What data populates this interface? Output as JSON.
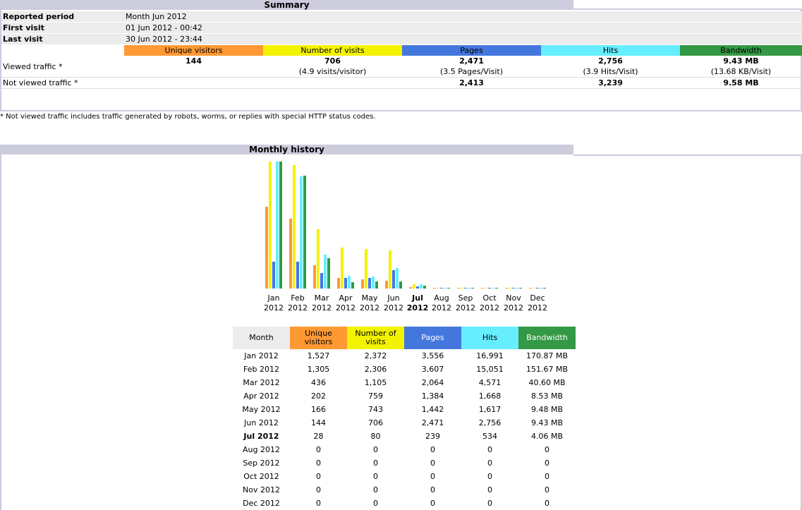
{
  "summary": {
    "title": "Summary",
    "info": [
      {
        "label": "Reported period",
        "value": "Month Jun 2012"
      },
      {
        "label": "First visit",
        "value": "01 Jun 2012 - 00:42"
      },
      {
        "label": "Last visit",
        "value": "30 Jun 2012 - 23:44"
      }
    ],
    "columns": [
      "Unique visitors",
      "Number of visits",
      "Pages",
      "Hits",
      "Bandwidth"
    ],
    "viewed": {
      "label": "Viewed traffic *",
      "unique": "144",
      "visits": "706",
      "visits_sub": "(4.9 visits/visitor)",
      "pages": "2,471",
      "pages_sub": "(3.5 Pages/Visit)",
      "hits": "2,756",
      "hits_sub": "(3.9 Hits/Visit)",
      "bandwidth": "9.43 MB",
      "bandwidth_sub": "(13.68 KB/Visit)"
    },
    "not_viewed": {
      "label": "Not viewed traffic *",
      "pages": "2,413",
      "hits": "3,239",
      "bandwidth": "9.58 MB"
    },
    "note": "* Not viewed traffic includes traffic generated by robots, worms, or replies with special HTTP status codes."
  },
  "monthly": {
    "title": "Monthly history",
    "columns": {
      "month": "Month",
      "unique": "Unique visitors",
      "visits": "Number of visits",
      "pages": "Pages",
      "hits": "Hits",
      "bandwidth": "Bandwidth"
    },
    "current_month": "Jul 2012",
    "rows": [
      {
        "month": "Jan 2012",
        "unique": "1,527",
        "visits": "2,372",
        "pages": "3,556",
        "hits": "16,991",
        "bandwidth": "170.87 MB"
      },
      {
        "month": "Feb 2012",
        "unique": "1,305",
        "visits": "2,306",
        "pages": "3,607",
        "hits": "15,051",
        "bandwidth": "151.67 MB"
      },
      {
        "month": "Mar 2012",
        "unique": "436",
        "visits": "1,105",
        "pages": "2,064",
        "hits": "4,571",
        "bandwidth": "40.60 MB"
      },
      {
        "month": "Apr 2012",
        "unique": "202",
        "visits": "759",
        "pages": "1,384",
        "hits": "1,668",
        "bandwidth": "8.53 MB"
      },
      {
        "month": "May 2012",
        "unique": "166",
        "visits": "743",
        "pages": "1,442",
        "hits": "1,617",
        "bandwidth": "9.48 MB"
      },
      {
        "month": "Jun 2012",
        "unique": "144",
        "visits": "706",
        "pages": "2,471",
        "hits": "2,756",
        "bandwidth": "9.43 MB"
      },
      {
        "month": "Jul 2012",
        "unique": "28",
        "visits": "80",
        "pages": "239",
        "hits": "534",
        "bandwidth": "4.06 MB"
      },
      {
        "month": "Aug 2012",
        "unique": "0",
        "visits": "0",
        "pages": "0",
        "hits": "0",
        "bandwidth": "0"
      },
      {
        "month": "Sep 2012",
        "unique": "0",
        "visits": "0",
        "pages": "0",
        "hits": "0",
        "bandwidth": "0"
      },
      {
        "month": "Oct 2012",
        "unique": "0",
        "visits": "0",
        "pages": "0",
        "hits": "0",
        "bandwidth": "0"
      },
      {
        "month": "Nov 2012",
        "unique": "0",
        "visits": "0",
        "pages": "0",
        "hits": "0",
        "bandwidth": "0"
      },
      {
        "month": "Dec 2012",
        "unique": "0",
        "visits": "0",
        "pages": "0",
        "hits": "0",
        "bandwidth": "0"
      }
    ]
  },
  "colors": {
    "unique": "#ff9933",
    "visits": "#f3f300",
    "pages": "#4477dd",
    "hits": "#66eeff",
    "bandwidth": "#339944"
  },
  "chart_data": {
    "type": "bar",
    "categories": [
      [
        "Jan",
        "2012"
      ],
      [
        "Feb",
        "2012"
      ],
      [
        "Mar",
        "2012"
      ],
      [
        "Apr",
        "2012"
      ],
      [
        "May",
        "2012"
      ],
      [
        "Jun",
        "2012"
      ],
      [
        "Jul",
        "2012"
      ],
      [
        "Aug",
        "2012"
      ],
      [
        "Sep",
        "2012"
      ],
      [
        "Oct",
        "2012"
      ],
      [
        "Nov",
        "2012"
      ],
      [
        "Dec",
        "2012"
      ]
    ],
    "highlight_category": 6,
    "groups": [
      {
        "key": "visitors",
        "series": [
          {
            "key": "unique",
            "values": [
              1527,
              1305,
              436,
              202,
              166,
              144,
              28,
              0,
              0,
              0,
              0,
              0
            ]
          },
          {
            "key": "visits",
            "values": [
              2372,
              2306,
              1105,
              759,
              743,
              706,
              80,
              0,
              0,
              0,
              0,
              0
            ]
          }
        ]
      },
      {
        "key": "pages_hits",
        "series": [
          {
            "key": "pages",
            "values": [
              3556,
              3607,
              2064,
              1384,
              1442,
              2471,
              239,
              0,
              0,
              0,
              0,
              0
            ]
          },
          {
            "key": "hits",
            "values": [
              16991,
              15051,
              4571,
              1668,
              1617,
              2756,
              534,
              0,
              0,
              0,
              0,
              0
            ]
          }
        ]
      },
      {
        "key": "bandwidth",
        "series": [
          {
            "key": "bandwidth",
            "values": [
              170.87,
              151.67,
              40.6,
              8.53,
              9.48,
              9.43,
              4.06,
              0,
              0,
              0,
              0,
              0
            ]
          }
        ]
      }
    ],
    "title": "",
    "xlabel": "",
    "ylabel": ""
  }
}
